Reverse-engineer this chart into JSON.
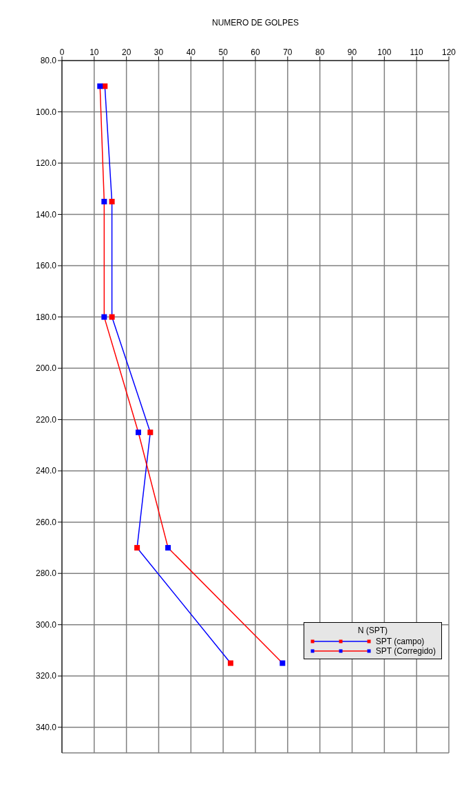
{
  "chart_data": {
    "type": "line",
    "xlabel": "NUMERO DE GOLPES",
    "legend_title": "N (SPT)",
    "xlim": [
      0,
      120
    ],
    "xticks": [
      0,
      10,
      20,
      30,
      40,
      50,
      60,
      70,
      80,
      90,
      100,
      110,
      120
    ],
    "ylim": [
      350,
      80
    ],
    "yticks": [
      {
        "value": 80,
        "label": "80.0"
      },
      {
        "value": 100,
        "label": "100.0"
      },
      {
        "value": 120,
        "label": "120.0"
      },
      {
        "value": 140,
        "label": "140.0"
      },
      {
        "value": 160,
        "label": "160.0"
      },
      {
        "value": 180,
        "label": "180.0"
      },
      {
        "value": 200,
        "label": "200.0"
      },
      {
        "value": 220,
        "label": "220.0"
      },
      {
        "value": 240,
        "label": "240.0"
      },
      {
        "value": 260,
        "label": "260.0"
      },
      {
        "value": 280,
        "label": "280.0"
      },
      {
        "value": 300,
        "label": "300.0"
      },
      {
        "value": 320,
        "label": "320.0"
      },
      {
        "value": 340,
        "label": "340.0"
      }
    ],
    "series": [
      {
        "name": "SPT (campo)",
        "color": "#0000ff",
        "colors": [
          "#ff0000",
          "#ff0000",
          "#ff0000",
          "#ff0000",
          "#ff0000",
          "#ff0000"
        ],
        "x": [
          13.3,
          15.5,
          15.5,
          27.4,
          23.3,
          52.3
        ],
        "values": [
          90,
          135,
          180,
          225,
          270,
          315
        ]
      },
      {
        "name": "SPT (Corregido)",
        "color": "#ff0000",
        "colors": [
          "#0000ff",
          "#0000ff",
          "#0000ff",
          "#0000ff",
          "#0000ff",
          "#0000ff"
        ],
        "x": [
          11.8,
          13.1,
          13.1,
          23.7,
          32.9,
          68.4
        ],
        "values": [
          90,
          135,
          180,
          225,
          270,
          315
        ]
      }
    ],
    "grid": true,
    "legend": "bottom right",
    "marker": "square",
    "line_style": "solid"
  }
}
